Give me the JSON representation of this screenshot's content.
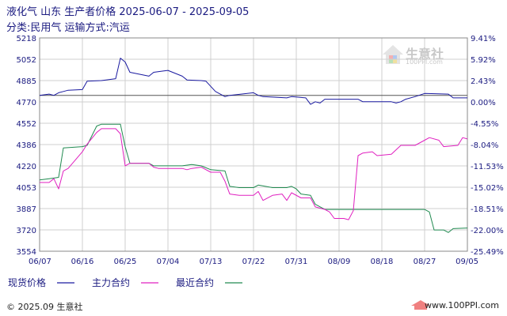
{
  "title": "液化气  山东  生产者价格  2025-06-07 - 2025-09-05",
  "subtitle": "分类:民用气  运输方式:汽运",
  "footer": {
    "copyright": "© 2025.09 生意社",
    "url": "www.100PPI.com"
  },
  "watermark": {
    "text": "生意社",
    "url": "100PPI.com"
  },
  "colors": {
    "spot": "#1a1aa0",
    "main": "#e020c0",
    "recent": "#208a50",
    "axis": "#1a1a80",
    "grid": "#cfcfcf",
    "baseline": "#555555"
  },
  "chart_data": {
    "type": "line",
    "x_ticks": [
      "06/07",
      "06/16",
      "06/25",
      "07/04",
      "07/13",
      "07/22",
      "07/31",
      "08/09",
      "08/18",
      "08/27",
      "09/05"
    ],
    "y_ticks_left": [
      "5218",
      "5052",
      "4885",
      "4770",
      "4552",
      "4386",
      "4220",
      "4053",
      "3887",
      "3720",
      "3554"
    ],
    "y_ticks_right": [
      "9.41%",
      "5.92%",
      "2.43%",
      "0.00%",
      "-4.55%",
      "-8.04%",
      "-11.53%",
      "-15.02%",
      "-18.51%",
      "-22.00%",
      "-25.49%"
    ],
    "ylim": [
      3554,
      5218
    ],
    "reference_value": 4770,
    "legend": [
      {
        "key": "spot",
        "label": "现货价格"
      },
      {
        "key": "main",
        "label": "主力合约"
      },
      {
        "key": "recent",
        "label": "最近合约"
      }
    ],
    "series": [
      {
        "name": "现货价格",
        "key": "spot",
        "points": [
          [
            "2025-06-07",
            4770
          ],
          [
            "2025-06-09",
            4780
          ],
          [
            "2025-06-10",
            4770
          ],
          [
            "2025-06-11",
            4790
          ],
          [
            "2025-06-12",
            4800
          ],
          [
            "2025-06-13",
            4810
          ],
          [
            "2025-06-16",
            4815
          ],
          [
            "2025-06-17",
            4880
          ],
          [
            "2025-06-20",
            4885
          ],
          [
            "2025-06-23",
            4900
          ],
          [
            "2025-06-24",
            5060
          ],
          [
            "2025-06-25",
            5030
          ],
          [
            "2025-06-26",
            4950
          ],
          [
            "2025-06-30",
            4920
          ],
          [
            "2025-07-01",
            4950
          ],
          [
            "2025-07-03",
            4960
          ],
          [
            "2025-07-04",
            4965
          ],
          [
            "2025-07-07",
            4920
          ],
          [
            "2025-07-08",
            4890
          ],
          [
            "2025-07-11",
            4885
          ],
          [
            "2025-07-12",
            4880
          ],
          [
            "2025-07-14",
            4800
          ],
          [
            "2025-07-16",
            4760
          ],
          [
            "2025-07-17",
            4770
          ],
          [
            "2025-07-22",
            4790
          ],
          [
            "2025-07-23",
            4770
          ],
          [
            "2025-07-24",
            4760
          ],
          [
            "2025-07-29",
            4750
          ],
          [
            "2025-07-30",
            4760
          ],
          [
            "2025-08-02",
            4750
          ],
          [
            "2025-08-03",
            4700
          ],
          [
            "2025-08-04",
            4720
          ],
          [
            "2025-08-05",
            4710
          ],
          [
            "2025-08-06",
            4740
          ],
          [
            "2025-08-13",
            4740
          ],
          [
            "2025-08-14",
            4720
          ],
          [
            "2025-08-20",
            4720
          ],
          [
            "2025-08-21",
            4710
          ],
          [
            "2025-08-22",
            4720
          ],
          [
            "2025-08-23",
            4740
          ],
          [
            "2025-08-25",
            4760
          ],
          [
            "2025-08-27",
            4785
          ],
          [
            "2025-09-01",
            4780
          ],
          [
            "2025-09-02",
            4750
          ],
          [
            "2025-09-05",
            4750
          ]
        ]
      },
      {
        "name": "主力合约",
        "key": "main",
        "points": [
          [
            "2025-06-07",
            4090
          ],
          [
            "2025-06-09",
            4090
          ],
          [
            "2025-06-10",
            4120
          ],
          [
            "2025-06-11",
            4040
          ],
          [
            "2025-06-12",
            4180
          ],
          [
            "2025-06-13",
            4200
          ],
          [
            "2025-06-16",
            4330
          ],
          [
            "2025-06-17",
            4390
          ],
          [
            "2025-06-19",
            4480
          ],
          [
            "2025-06-20",
            4510
          ],
          [
            "2025-06-23",
            4510
          ],
          [
            "2025-06-24",
            4470
          ],
          [
            "2025-06-25",
            4220
          ],
          [
            "2025-06-26",
            4240
          ],
          [
            "2025-06-30",
            4240
          ],
          [
            "2025-07-01",
            4210
          ],
          [
            "2025-07-02",
            4200
          ],
          [
            "2025-07-07",
            4200
          ],
          [
            "2025-07-08",
            4190
          ],
          [
            "2025-07-09",
            4200
          ],
          [
            "2025-07-11",
            4210
          ],
          [
            "2025-07-13",
            4170
          ],
          [
            "2025-07-15",
            4170
          ],
          [
            "2025-07-16",
            4100
          ],
          [
            "2025-07-17",
            4000
          ],
          [
            "2025-07-19",
            3990
          ],
          [
            "2025-07-22",
            3990
          ],
          [
            "2025-07-23",
            4020
          ],
          [
            "2025-07-24",
            3950
          ],
          [
            "2025-07-26",
            3990
          ],
          [
            "2025-07-28",
            4000
          ],
          [
            "2025-07-29",
            3950
          ],
          [
            "2025-07-30",
            4010
          ],
          [
            "2025-08-01",
            3970
          ],
          [
            "2025-08-03",
            3970
          ],
          [
            "2025-08-04",
            3900
          ],
          [
            "2025-08-06",
            3880
          ],
          [
            "2025-08-07",
            3860
          ],
          [
            "2025-08-08",
            3810
          ],
          [
            "2025-08-10",
            3810
          ],
          [
            "2025-08-11",
            3800
          ],
          [
            "2025-08-12",
            3870
          ],
          [
            "2025-08-13",
            4300
          ],
          [
            "2025-08-14",
            4320
          ],
          [
            "2025-08-16",
            4330
          ],
          [
            "2025-08-17",
            4300
          ],
          [
            "2025-08-20",
            4310
          ],
          [
            "2025-08-22",
            4380
          ],
          [
            "2025-08-25",
            4380
          ],
          [
            "2025-08-27",
            4420
          ],
          [
            "2025-08-28",
            4440
          ],
          [
            "2025-08-30",
            4420
          ],
          [
            "2025-08-31",
            4370
          ],
          [
            "2025-09-03",
            4380
          ],
          [
            "2025-09-04",
            4440
          ],
          [
            "2025-09-05",
            4430
          ]
        ]
      },
      {
        "name": "最近合约",
        "key": "recent",
        "points": [
          [
            "2025-06-07",
            4110
          ],
          [
            "2025-06-09",
            4120
          ],
          [
            "2025-06-11",
            4130
          ],
          [
            "2025-06-12",
            4360
          ],
          [
            "2025-06-16",
            4370
          ],
          [
            "2025-06-17",
            4380
          ],
          [
            "2025-06-19",
            4530
          ],
          [
            "2025-06-20",
            4545
          ],
          [
            "2025-06-24",
            4545
          ],
          [
            "2025-06-25",
            4370
          ],
          [
            "2025-06-26",
            4240
          ],
          [
            "2025-06-30",
            4240
          ],
          [
            "2025-07-01",
            4220
          ],
          [
            "2025-07-02",
            4220
          ],
          [
            "2025-07-07",
            4220
          ],
          [
            "2025-07-09",
            4230
          ],
          [
            "2025-07-11",
            4220
          ],
          [
            "2025-07-13",
            4190
          ],
          [
            "2025-07-16",
            4180
          ],
          [
            "2025-07-17",
            4060
          ],
          [
            "2025-07-19",
            4050
          ],
          [
            "2025-07-22",
            4050
          ],
          [
            "2025-07-23",
            4070
          ],
          [
            "2025-07-26",
            4050
          ],
          [
            "2025-07-29",
            4050
          ],
          [
            "2025-07-30",
            4060
          ],
          [
            "2025-07-31",
            4040
          ],
          [
            "2025-08-01",
            4000
          ],
          [
            "2025-08-03",
            3990
          ],
          [
            "2025-08-04",
            3920
          ],
          [
            "2025-08-06",
            3880
          ],
          [
            "2025-08-27",
            3880
          ],
          [
            "2025-08-28",
            3860
          ],
          [
            "2025-08-29",
            3720
          ],
          [
            "2025-08-31",
            3720
          ],
          [
            "2025-09-01",
            3700
          ],
          [
            "2025-09-02",
            3730
          ],
          [
            "2025-09-05",
            3735
          ]
        ]
      }
    ]
  }
}
